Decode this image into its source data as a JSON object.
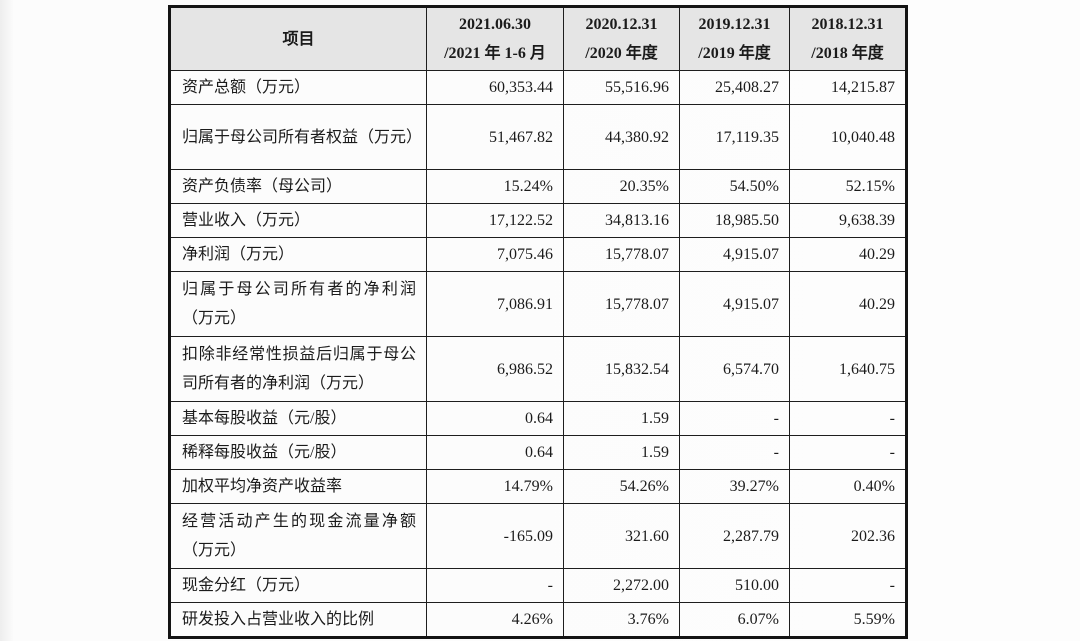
{
  "colors": {
    "header_bg": "#e5e5e5",
    "border": "#1e1e1e",
    "text": "#1b1b1b"
  },
  "table": {
    "header": {
      "item_label": "项目",
      "columns": [
        {
          "line1": "2021.06.30",
          "line2": "/2021 年 1-6 月"
        },
        {
          "line1": "2020.12.31",
          "line2": "/2020 年度"
        },
        {
          "line1": "2019.12.31",
          "line2": "/2019 年度"
        },
        {
          "line1": "2018.12.31",
          "line2": "/2018 年度"
        }
      ]
    },
    "rows": [
      {
        "label": "资产总额（万元）",
        "values": [
          "60,353.44",
          "55,516.96",
          "25,408.27",
          "14,215.87"
        ]
      },
      {
        "label": "归属于母公司所有者权益（万元）",
        "values": [
          "51,467.82",
          "44,380.92",
          "17,119.35",
          "10,040.48"
        ]
      },
      {
        "label": "资产负债率（母公司）",
        "values": [
          "15.24%",
          "20.35%",
          "54.50%",
          "52.15%"
        ]
      },
      {
        "label": "营业收入（万元）",
        "values": [
          "17,122.52",
          "34,813.16",
          "18,985.50",
          "9,638.39"
        ]
      },
      {
        "label": "净利润（万元）",
        "values": [
          "7,075.46",
          "15,778.07",
          "4,915.07",
          "40.29"
        ]
      },
      {
        "label": "归属于母公司所有者的净利润（万元）",
        "values": [
          "7,086.91",
          "15,778.07",
          "4,915.07",
          "40.29"
        ]
      },
      {
        "label": "扣除非经常性损益后归属于母公司所有者的净利润（万元）",
        "values": [
          "6,986.52",
          "15,832.54",
          "6,574.70",
          "1,640.75"
        ]
      },
      {
        "label": "基本每股收益（元/股）",
        "values": [
          "0.64",
          "1.59",
          "-",
          "-"
        ]
      },
      {
        "label": "稀释每股收益（元/股）",
        "values": [
          "0.64",
          "1.59",
          "-",
          "-"
        ]
      },
      {
        "label": "加权平均净资产收益率",
        "values": [
          "14.79%",
          "54.26%",
          "39.27%",
          "0.40%"
        ]
      },
      {
        "label": "经营活动产生的现金流量净额（万元）",
        "values": [
          "-165.09",
          "321.60",
          "2,287.79",
          "202.36"
        ]
      },
      {
        "label": "现金分红（万元）",
        "values": [
          "-",
          "2,272.00",
          "510.00",
          "-"
        ]
      },
      {
        "label": "研发投入占营业收入的比例",
        "values": [
          "4.26%",
          "3.76%",
          "6.07%",
          "5.59%"
        ]
      }
    ]
  }
}
